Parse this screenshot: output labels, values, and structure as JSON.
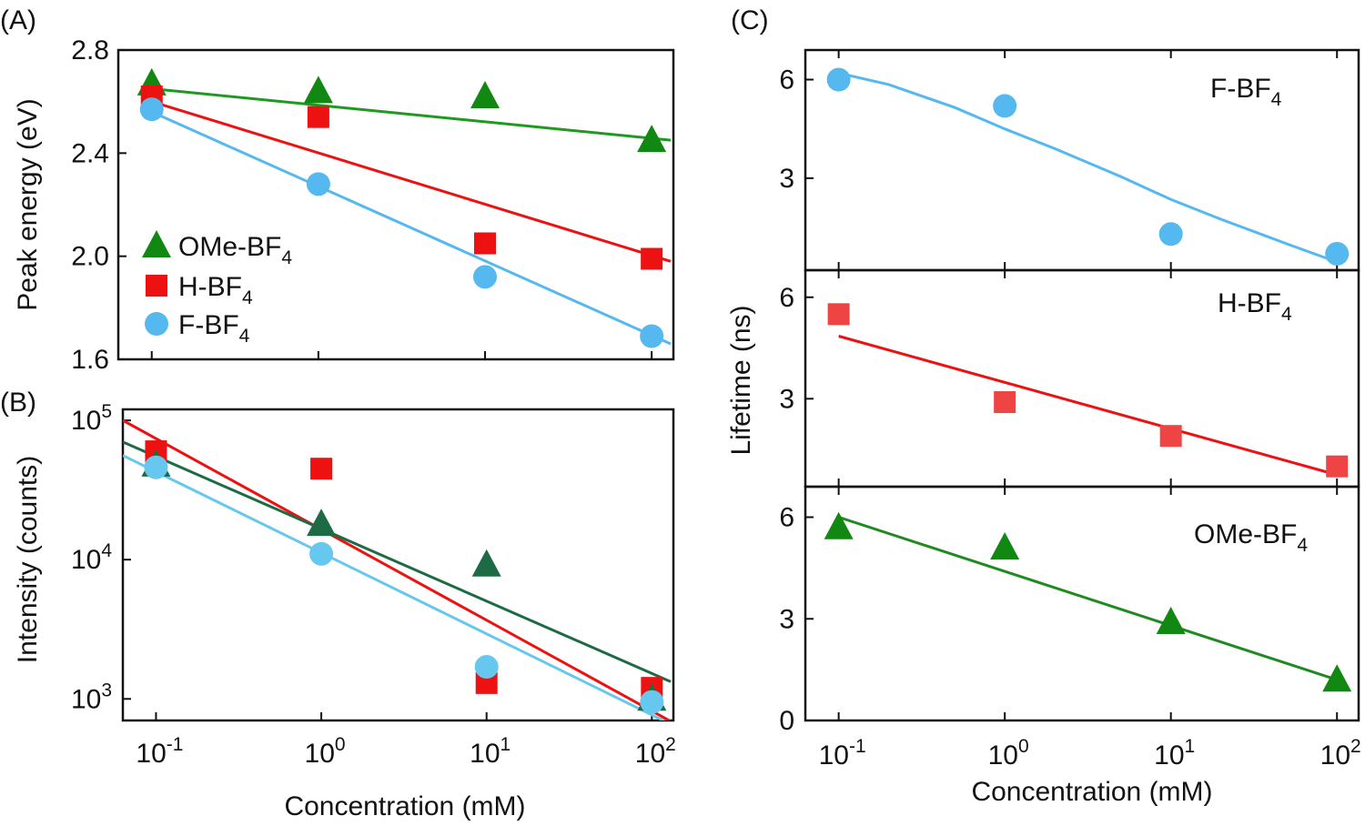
{
  "chart_data": [
    {
      "panel": "(A)",
      "type": "scatter",
      "xscale": "log",
      "xlabel": "",
      "ylabel": "Peak energy (eV)",
      "xlim": [
        0.063,
        135
      ],
      "ylim": [
        1.6,
        2.8
      ],
      "xticks": [
        {
          "value": 0.1,
          "base": "10",
          "exp": "-1"
        },
        {
          "value": 1,
          "base": "10",
          "exp": "0"
        },
        {
          "value": 10,
          "base": "10",
          "exp": "1"
        },
        {
          "value": 100,
          "base": "10",
          "exp": "2"
        }
      ],
      "yticks": [
        {
          "value": 1.6,
          "label": "1.6"
        },
        {
          "value": 2.0,
          "label": "2.0"
        },
        {
          "value": 2.4,
          "label": "2.4"
        },
        {
          "value": 2.8,
          "label": "2.8"
        }
      ],
      "legend": {
        "placement": "bottom-left"
      },
      "series": [
        {
          "name": "OMe-BF",
          "sub": "4",
          "marker": "triangle",
          "color": "#118811",
          "line_color": "#1f9a1f",
          "x": [
            0.1,
            1,
            10,
            100
          ],
          "y": [
            2.67,
            2.64,
            2.62,
            2.45
          ],
          "fit": {
            "x": [
              0.1,
              130
            ],
            "y": [
              2.65,
              2.45
            ]
          }
        },
        {
          "name": "H-BF",
          "sub": "4",
          "marker": "square",
          "color": "#ee1111",
          "line_color": "#ee1111",
          "x": [
            0.1,
            1,
            10,
            100
          ],
          "y": [
            2.62,
            2.54,
            2.05,
            1.99
          ],
          "fit": {
            "x": [
              0.1,
              130
            ],
            "y": [
              2.6,
              1.98
            ]
          }
        },
        {
          "name": "F-BF",
          "sub": "4",
          "marker": "circle",
          "color": "#55b8ee",
          "line_color": "#55b8ee",
          "x": [
            0.1,
            1,
            10,
            100
          ],
          "y": [
            2.57,
            2.28,
            1.92,
            1.69
          ],
          "fit": {
            "x": [
              0.1,
              130
            ],
            "y": [
              2.56,
              1.66
            ]
          }
        }
      ]
    },
    {
      "panel": "(B)",
      "type": "scatter",
      "xscale": "log",
      "yscale": "log",
      "xlabel": "Concentration (mM)",
      "ylabel": "Intensity (counts)",
      "xlim": [
        0.063,
        135
      ],
      "ylim": [
        700,
        120000
      ],
      "xticks": [
        {
          "value": 0.1,
          "base": "10",
          "exp": "-1"
        },
        {
          "value": 1,
          "base": "10",
          "exp": "0"
        },
        {
          "value": 10,
          "base": "10",
          "exp": "1"
        },
        {
          "value": 100,
          "base": "10",
          "exp": "2"
        }
      ],
      "yticks": [
        {
          "value": 1000,
          "base": "10",
          "exp": "3"
        },
        {
          "value": 10000,
          "base": "10",
          "exp": "4"
        },
        {
          "value": 100000,
          "base": "10",
          "exp": "5"
        }
      ],
      "series": [
        {
          "marker": "square",
          "color": "#ee1111",
          "line_color": "#ee1111",
          "x": [
            0.1,
            1,
            10,
            100
          ],
          "y": [
            60000,
            45000,
            1300,
            1200
          ],
          "fit": {
            "x": [
              0.063,
              130
            ],
            "y": [
              100000,
              690
            ]
          }
        },
        {
          "marker": "triangle",
          "color": "#1d6b45",
          "line_color": "#1d6b45",
          "x": [
            0.1,
            1,
            10,
            100
          ],
          "y": [
            48000,
            18000,
            9200,
            1000
          ],
          "fit": {
            "x": [
              0.063,
              130
            ],
            "y": [
              70000,
              1330
            ]
          }
        },
        {
          "marker": "circle",
          "color": "#66c8ee",
          "line_color": "#66c8ee",
          "x": [
            0.1,
            1,
            10,
            100
          ],
          "y": [
            46000,
            11000,
            1700,
            950
          ],
          "fit": {
            "x": [
              0.063,
              120
            ],
            "y": [
              56000,
              690
            ]
          }
        }
      ]
    },
    {
      "panel": "(C)",
      "type": "scatter",
      "xscale": "log",
      "xlabel": "Concentration (mM)",
      "ylabel": "Lifetime (ns)",
      "xlim": [
        0.063,
        135
      ],
      "xticks": [
        {
          "value": 0.1,
          "base": "10",
          "exp": "-1"
        },
        {
          "value": 1,
          "base": "10",
          "exp": "0"
        },
        {
          "value": 10,
          "base": "10",
          "exp": "1"
        },
        {
          "value": 100,
          "base": "10",
          "exp": "2"
        }
      ],
      "subplots": [
        {
          "annotation": "F-BF",
          "sub": "4",
          "ylim": [
            0.2,
            6.9
          ],
          "yticks": [
            {
              "value": 3,
              "label": "3"
            },
            {
              "value": 6,
              "label": "6"
            }
          ],
          "marker": "circle",
          "color": "#55b8ee",
          "line_color": "#55b8ee",
          "x": [
            0.1,
            1,
            10,
            100
          ],
          "y": [
            6.0,
            5.2,
            1.3,
            0.7
          ],
          "fit": {
            "x": [
              0.1,
              0.2,
              0.5,
              1,
              2,
              5,
              10,
              20,
              50,
              100
            ],
            "y": [
              6.2,
              5.85,
              5.15,
              4.5,
              3.9,
              3.05,
              2.35,
              1.75,
              1.0,
              0.45
            ]
          }
        },
        {
          "annotation": "H-BF",
          "sub": "4",
          "ylim": [
            0.4,
            6.8
          ],
          "yticks": [
            {
              "value": 3,
              "label": "3"
            },
            {
              "value": 6,
              "label": "6"
            }
          ],
          "marker": "square",
          "color": "#ee4444",
          "line_color": "#ee1111",
          "x": [
            0.1,
            1,
            10,
            100
          ],
          "y": [
            5.5,
            2.9,
            1.9,
            1.0
          ],
          "fit": {
            "x": [
              0.1,
              100
            ],
            "y": [
              4.85,
              0.75
            ]
          }
        },
        {
          "annotation": "OMe-BF",
          "sub": "4",
          "ylim": [
            0,
            6.9
          ],
          "yticks": [
            {
              "value": 0,
              "label": "0"
            },
            {
              "value": 3,
              "label": "3"
            },
            {
              "value": 6,
              "label": "6"
            }
          ],
          "marker": "triangle",
          "color": "#118811",
          "line_color": "#1f8a1f",
          "x": [
            0.1,
            1,
            10,
            100
          ],
          "y": [
            5.7,
            5.1,
            2.9,
            1.2
          ],
          "fit": {
            "x": [
              0.1,
              100
            ],
            "y": [
              6.0,
              1.2
            ]
          }
        }
      ]
    }
  ]
}
